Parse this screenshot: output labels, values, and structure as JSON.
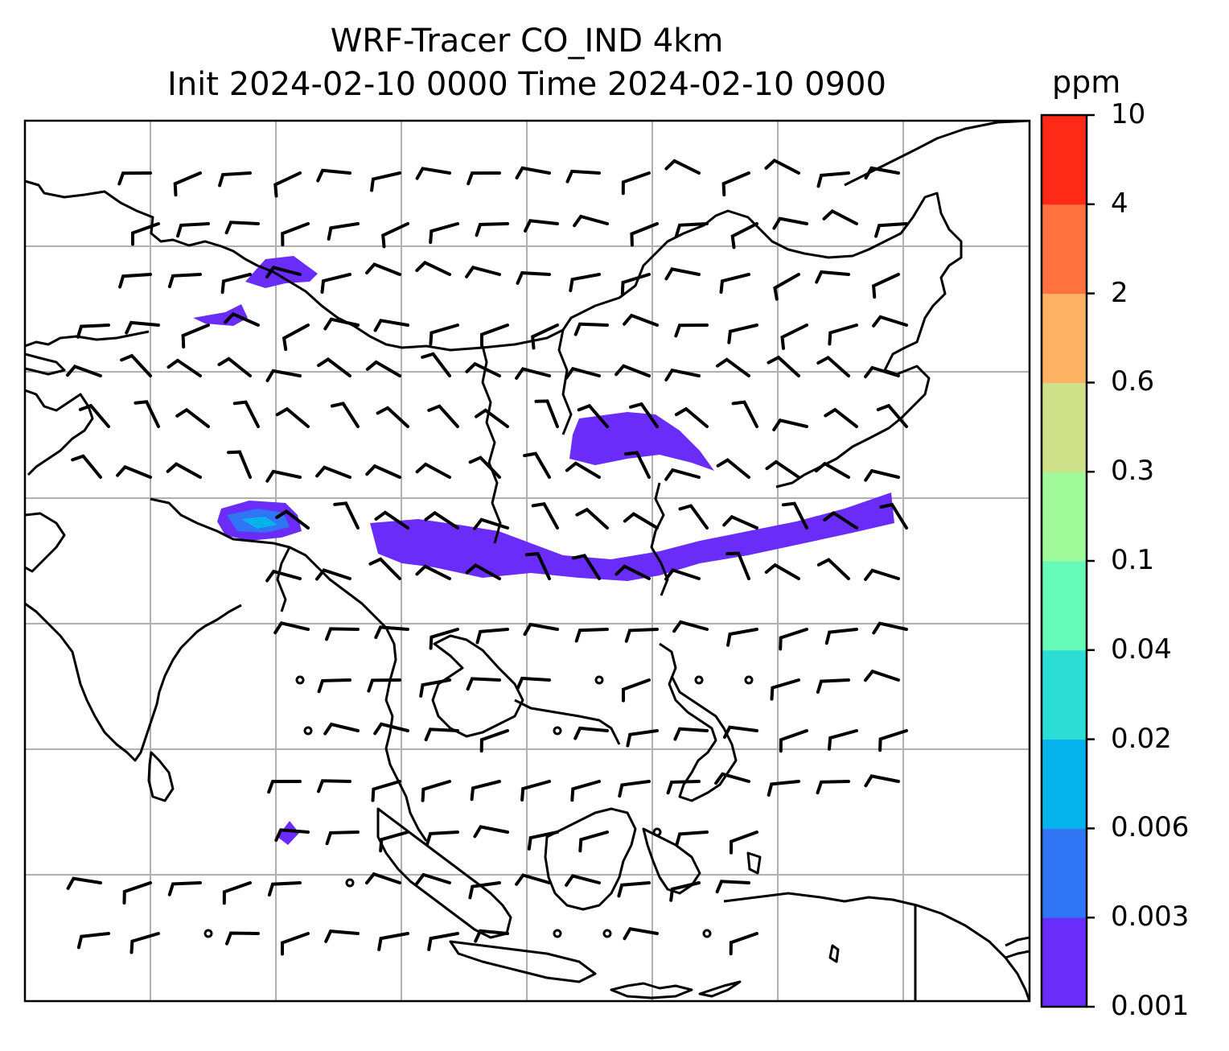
{
  "title_line1": "WRF-Tracer CO_IND 4km",
  "title_line2": "Init 2024-02-10 0000 Time 2024-02-10 0900",
  "colorbar": {
    "unit": "ppm",
    "levels": [
      "0.001",
      "0.003",
      "0.006",
      "0.02",
      "0.04",
      "0.1",
      "0.3",
      "0.6",
      "2",
      "4",
      "10"
    ],
    "colors": [
      "#6a2cf8",
      "#3075f3",
      "#06b2eb",
      "#2bddd4",
      "#66fbb8",
      "#a0fa9a",
      "#d0e088",
      "#fdb163",
      "#ff7240",
      "#ff2918"
    ]
  },
  "map": {
    "field": "CO_IND",
    "gridlines": true,
    "land_outline_color": "#000000",
    "grid_color": "#b0b0b0",
    "wind_barbs": true
  }
}
